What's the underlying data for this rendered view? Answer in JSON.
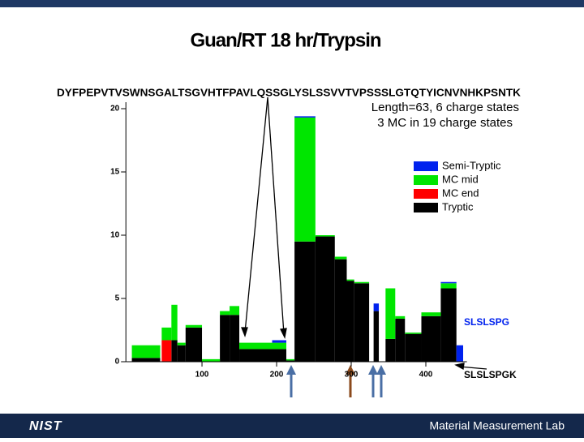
{
  "chart_data": {
    "type": "histogram",
    "title": "Guan/RT 18 hr/Trypsin",
    "annotations": [
      "DYFPEPVTVSWNSGALTSGVHTFPAVLQSSGLYSLSSVVTVPSSSLGTQTYICNVNHKPSNTK",
      "Length=63, 6 charge states",
      "3 MC in 19 charge states",
      "SLSLSPG",
      "SLSLSPGK"
    ],
    "bins": [
      6,
      44,
      46,
      59,
      67,
      78,
      100,
      124,
      137,
      150,
      194,
      213,
      224,
      252,
      278,
      294,
      304,
      324,
      330,
      337,
      346,
      359,
      372,
      394,
      420,
      441,
      450
    ],
    "series": [
      {
        "name": "Tryptic",
        "color": "#000000",
        "values": [
          0.3,
          0,
          0,
          1.7,
          1.3,
          2.7,
          0,
          3.7,
          3.7,
          1.0,
          1.0,
          0.1,
          9.5,
          9.9,
          8.1,
          6.4,
          6.2,
          0,
          4.0,
          0,
          1.8,
          3.4,
          2.2,
          3.6,
          5.8,
          0
        ]
      },
      {
        "name": "MC end",
        "color": "#ff0000",
        "values": [
          0,
          0,
          1.7,
          0,
          0,
          0,
          0,
          0,
          0,
          0,
          0,
          0,
          0,
          0,
          0,
          0,
          0,
          0,
          0,
          0,
          0,
          0,
          0,
          0,
          0,
          0
        ]
      },
      {
        "name": "MC mid",
        "color": "#00e600",
        "values": [
          1.0,
          0,
          1.0,
          2.8,
          0.2,
          0.2,
          0.2,
          0.3,
          0.7,
          0.5,
          0.5,
          0.1,
          9.8,
          0.1,
          0.2,
          0.1,
          0.1,
          0,
          0,
          0,
          4.0,
          0.2,
          0.1,
          0.3,
          0.4,
          0
        ]
      },
      {
        "name": "Semi-Tryptic",
        "color": "#0022ee",
        "values": [
          0,
          0,
          0,
          0,
          0,
          0,
          0,
          0,
          0,
          0,
          0.2,
          0,
          0.1,
          0,
          0,
          0,
          0,
          0,
          0.6,
          0,
          0,
          0,
          0,
          0,
          0.1,
          1.3
        ]
      }
    ],
    "xlim": [
      -2,
      455
    ],
    "xticks": [
      100,
      200,
      300,
      400
    ],
    "ylim": [
      0,
      20
    ],
    "yticks": [
      0,
      5,
      10,
      15,
      20
    ],
    "legend": "upper right"
  },
  "footer": {
    "logo": "NIST",
    "text": "Material Measurement Lab"
  }
}
